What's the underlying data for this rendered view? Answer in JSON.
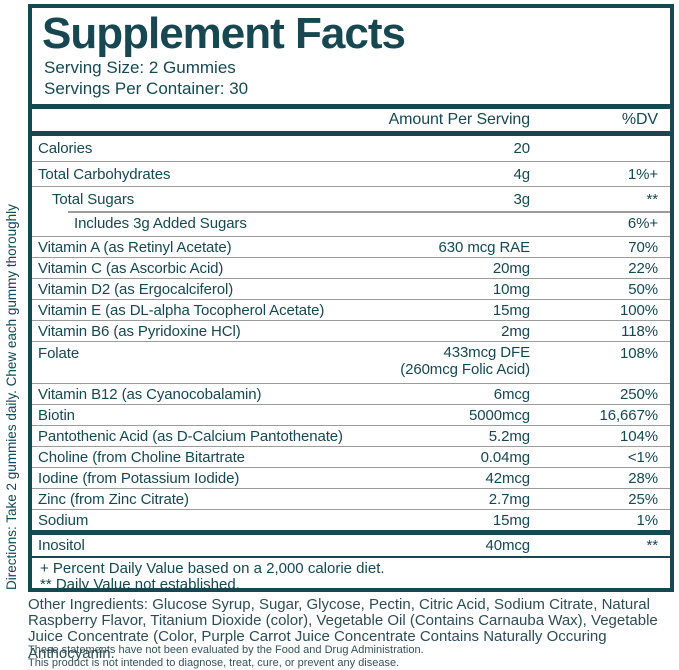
{
  "directions_vertical": "Directions: Take 2 gummies daily. Chew each gummy thoroughly",
  "label": {
    "title": "Supplement Facts",
    "serving_size": "Serving Size: 2 Gummies",
    "servings_per_container": "Servings Per Container: 30",
    "columns": {
      "amount": "Amount Per Serving",
      "dv": "%DV"
    },
    "rows": [
      {
        "name": "Calories",
        "amount": "20",
        "dv": ""
      },
      {
        "name": "Total Carbohydrates",
        "amount": "4g",
        "dv": "1%+"
      },
      {
        "name": "Total Sugars",
        "amount": "3g",
        "dv": "**"
      },
      {
        "name": "Includes 3g Added Sugars",
        "amount": "",
        "dv": "6%+"
      },
      {
        "name": "Vitamin A (as Retinyl Acetate)",
        "amount": "630 mcg RAE",
        "dv": "70%"
      },
      {
        "name": "Vitamin C (as Ascorbic Acid)",
        "amount": "20mg",
        "dv": "22%"
      },
      {
        "name": "Vitamin D2 (as Ergocalciferol)",
        "amount": "10mg",
        "dv": "50%"
      },
      {
        "name": "Vitamin E (as DL-alpha Tocopherol Acetate)",
        "amount": "15mg",
        "dv": "100%"
      },
      {
        "name": "Vitamin B6 (as Pyridoxine HCl)",
        "amount": "2mg",
        "dv": "118%"
      },
      {
        "name": "Folate",
        "amount": "433mcg DFE",
        "amount2": "(260mcg Folic Acid)",
        "dv": "108%"
      },
      {
        "name": "Vitamin B12 (as Cyanocobalamin)",
        "amount": "6mcg",
        "dv": "250%"
      },
      {
        "name": "Biotin",
        "amount": "5000mcg",
        "dv": "16,667%"
      },
      {
        "name": "Pantothenic Acid (as D-Calcium Pantothenate)",
        "amount": "5.2mg",
        "dv": "104%"
      },
      {
        "name": "Choline (from Choline Bitartrate",
        "amount": "0.04mg",
        "dv": "<1%"
      },
      {
        "name": "Iodine (from Potassium Iodide)",
        "amount": "42mcg",
        "dv": "28%"
      },
      {
        "name": "Zinc (from Zinc Citrate)",
        "amount": "2.7mg",
        "dv": "25%"
      },
      {
        "name": "Sodium",
        "amount": "15mg",
        "dv": "1%"
      },
      {
        "name": "Inositol",
        "amount": "40mcg",
        "dv": "**"
      }
    ],
    "footnotes": [
      "+ Percent Daily Value based on a 2,000 calorie diet.",
      "** Daily Value not established."
    ]
  },
  "other_ingredients": "Other Ingredients: Glucose Syrup, Sugar, Glycose, Pectin, Citric Acid, Sodium Citrate, Natural Raspberry Flavor, Titanium Dioxide (color), Vegetable Oil (Contains Carnauba Wax), Vegetable Juice Concentrate (Color, Purple Carrot Juice Concentrate Contains Naturally Occuring Anthocyanin.",
  "disclaimer": [
    "These statements have not been evaluated by the Food and Drug Administration.",
    "This product is not intended to diagnose, treat, cure, or prevent any disease."
  ],
  "colors": {
    "teal": "#174750",
    "separator": "#9c9c9c"
  }
}
